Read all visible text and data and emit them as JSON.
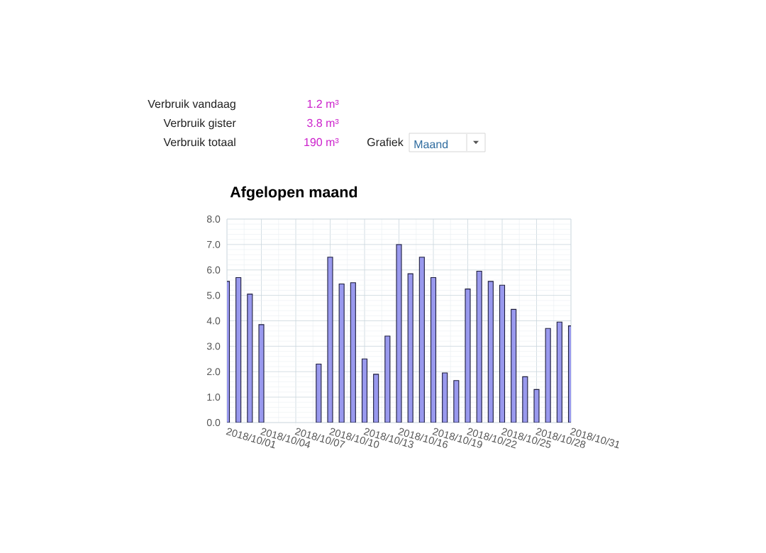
{
  "chart_data": {
    "type": "bar",
    "title": "Afgelopen maand",
    "x": [
      "2018-10-01",
      "2018-10-02",
      "2018-10-03",
      "2018-10-04",
      "2018-10-05",
      "2018-10-06",
      "2018-10-07",
      "2018-10-08",
      "2018-10-09",
      "2018-10-10",
      "2018-10-11",
      "2018-10-12",
      "2018-10-13",
      "2018-10-14",
      "2018-10-15",
      "2018-10-16",
      "2018-10-17",
      "2018-10-18",
      "2018-10-19",
      "2018-10-20",
      "2018-10-21",
      "2018-10-22",
      "2018-10-23",
      "2018-10-24",
      "2018-10-25",
      "2018-10-26",
      "2018-10-27",
      "2018-10-28",
      "2018-10-29",
      "2018-10-30",
      "2018-10-31"
    ],
    "values": [
      5.55,
      5.7,
      5.05,
      3.85,
      null,
      null,
      null,
      null,
      2.3,
      6.5,
      5.45,
      5.5,
      2.5,
      1.9,
      3.4,
      7.0,
      5.85,
      6.5,
      5.7,
      1.95,
      1.65,
      5.25,
      5.95,
      5.55,
      5.4,
      4.45,
      1.8,
      1.3,
      3.7,
      3.95,
      3.8
    ],
    "color": "#9999ee",
    "xlim": [
      "2018-10-01",
      "2018-10-31"
    ],
    "xticks": [
      {
        "value": "2018-10-01",
        "label": "2018/10/01"
      },
      {
        "value": "2018-10-04",
        "label": "2018/10/04"
      },
      {
        "value": "2018-10-07",
        "label": "2018/10/07"
      },
      {
        "value": "2018-10-10",
        "label": "2018/10/10"
      },
      {
        "value": "2018-10-13",
        "label": "2018/10/13"
      },
      {
        "value": "2018-10-16",
        "label": "2018/10/16"
      },
      {
        "value": "2018-10-19",
        "label": "2018/10/19"
      },
      {
        "value": "2018-10-22",
        "label": "2018/10/22"
      },
      {
        "value": "2018-10-25",
        "label": "2018/10/25"
      },
      {
        "value": "2018-10-28",
        "label": "2018/10/28"
      },
      {
        "value": "2018-10-31",
        "label": "2018/10/31"
      }
    ],
    "ylim": [
      0,
      8
    ],
    "yticks": [
      {
        "value": 0,
        "label": "0.0"
      },
      {
        "value": 1,
        "label": "1.0"
      },
      {
        "value": 2,
        "label": "2.0"
      },
      {
        "value": 3,
        "label": "3.0"
      },
      {
        "value": 4,
        "label": "4.0"
      },
      {
        "value": 5,
        "label": "5.0"
      },
      {
        "value": 6,
        "label": "6.0"
      },
      {
        "value": 7,
        "label": "7.0"
      },
      {
        "value": 8,
        "label": "8.0"
      }
    ],
    "grid": true,
    "annotations": [
      "Verbruik vandaag",
      "1.2 m³",
      "Verbruik gister",
      "3.8 m³",
      "Verbruik totaal",
      "190 m³",
      "Grafiek",
      "Maand"
    ]
  }
}
